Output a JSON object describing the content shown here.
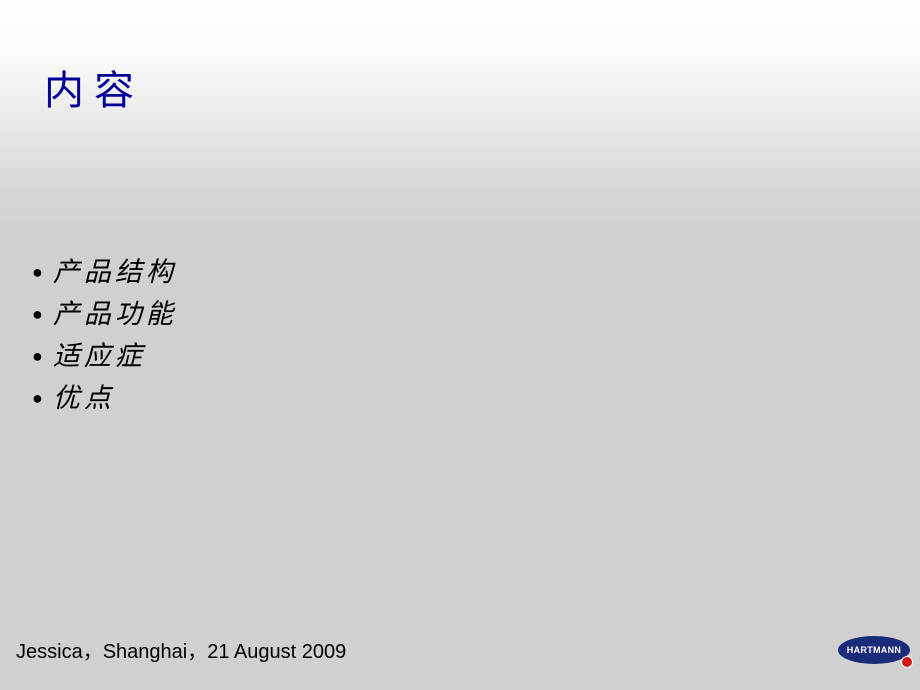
{
  "slide": {
    "title": "内容",
    "bullets": [
      "产品结构",
      "产品功能",
      "适应症",
      "优点"
    ],
    "footer": "Jessica，Shanghai，21 August 2009",
    "logo_text": "HARTMANN"
  },
  "styling": {
    "title_color": "#000099",
    "title_fontsize": 40,
    "bullet_color": "#000000",
    "bullet_fontsize": 27,
    "footer_fontsize": 20,
    "logo_bg": "#1a2b7a",
    "logo_badge": "#d01818",
    "background_gradient_top": "#fefefe",
    "background_gradient_bottom": "#d0d0d0",
    "slide_width": 920,
    "slide_height": 690
  }
}
